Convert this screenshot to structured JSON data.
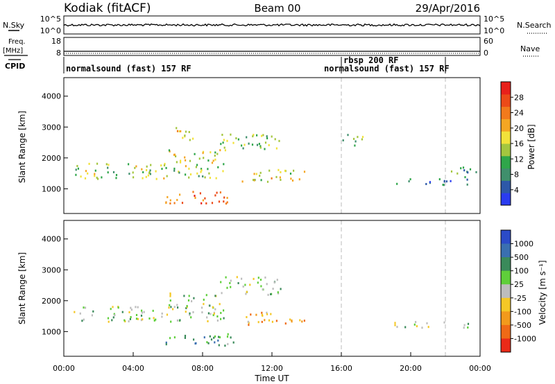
{
  "header": {
    "station": "Kodiak (fitACF)",
    "beam": "Beam 00",
    "date": "29/Apr/2016"
  },
  "noise_panel": {
    "left_label": "N.Sky",
    "right_label": "N.Search",
    "left_ticks": [
      "10^5",
      "10^0"
    ],
    "right_ticks": [
      "10^5",
      "10^0"
    ]
  },
  "freq_panel": {
    "left_label_1": "Freq.",
    "left_label_2": "[MHz]",
    "right_label": "Nave",
    "left_ticks": [
      "18",
      "8"
    ],
    "right_ticks": [
      "60",
      "0"
    ]
  },
  "cpid_panel": {
    "label": "CPID",
    "segments": [
      {
        "text": "normalsound (fast) 157 RF",
        "start_hour": 0
      },
      {
        "text": "rbsp 200 RF",
        "start_hour": 16
      },
      {
        "text": "normalsound (fast) 157 RF",
        "start_hour": 16
      }
    ]
  },
  "colors": {
    "power": [
      "#2a3cf0",
      "#2d58a8",
      "#3f8f6c",
      "#2fa64a",
      "#a4c63f",
      "#f2e23a",
      "#f5a623",
      "#f27a1c",
      "#ec4a18",
      "#e8201a"
    ],
    "velocity": [
      "#2b4bc8",
      "#3a6fb0",
      "#3a8a5a",
      "#5fcf3a",
      "#bdbdbd",
      "#f5c826",
      "#f29a1c",
      "#ef6a16",
      "#ea2a18"
    ]
  },
  "chart_data": [
    {
      "type": "heatmap",
      "quantity": "power",
      "ylabel": "Slant Range [km]",
      "xlim_hours": [
        0,
        24
      ],
      "ylim_km": [
        200,
        4600
      ],
      "yticks": [
        "1000",
        "2000",
        "3000",
        "4000"
      ],
      "colorbar_label": "Power [dB]",
      "colorbar_ticks": [
        "4",
        "8",
        "12",
        "16",
        "20",
        "24",
        "28"
      ],
      "vertical_markers_hours": [
        16,
        22
      ],
      "regions": [
        {
          "t0": 0.5,
          "t1": 9.5,
          "r0": 1350,
          "r1": 1850,
          "level": 0.45
        },
        {
          "t0": 6.0,
          "t1": 9.0,
          "r0": 1800,
          "r1": 2300,
          "level": 0.5
        },
        {
          "t0": 9.0,
          "t1": 12.5,
          "r0": 2200,
          "r1": 2800,
          "level": 0.4
        },
        {
          "t0": 6.3,
          "t1": 7.6,
          "r0": 2600,
          "r1": 3100,
          "level": 0.55
        },
        {
          "t0": 5.8,
          "t1": 9.8,
          "r0": 550,
          "r1": 950,
          "level": 0.8
        },
        {
          "t0": 10.2,
          "t1": 14.0,
          "r0": 1250,
          "r1": 1650,
          "level": 0.55
        },
        {
          "t0": 16.0,
          "t1": 17.2,
          "r0": 2400,
          "r1": 2800,
          "level": 0.35
        },
        {
          "t0": 19.0,
          "t1": 23.5,
          "r0": 1150,
          "r1": 1350,
          "level": 0.2
        },
        {
          "t0": 22.3,
          "t1": 24.0,
          "r0": 1400,
          "r1": 1750,
          "level": 0.3
        }
      ]
    },
    {
      "type": "heatmap",
      "quantity": "velocity",
      "ylabel": "Slant Range [km]",
      "xlabel": "Time UT",
      "xlim_hours": [
        0,
        24
      ],
      "ylim_km": [
        200,
        4600
      ],
      "xticks": [
        "00:00",
        "04:00",
        "08:00",
        "12:00",
        "16:00",
        "20:00",
        "00:00"
      ],
      "yticks": [
        "1000",
        "2000",
        "3000",
        "4000"
      ],
      "colorbar_label": "Velocity [m s⁻¹]",
      "colorbar_ticks": [
        "1000",
        "500",
        "100",
        "25",
        "-25",
        "-100",
        "-500",
        "-1000"
      ],
      "vertical_markers_hours": [
        16,
        22
      ],
      "regions": [
        {
          "t0": 0.5,
          "t1": 9.5,
          "r0": 1350,
          "r1": 1850,
          "level": 0.45
        },
        {
          "t0": 6.0,
          "t1": 9.0,
          "r0": 1800,
          "r1": 2300,
          "level": 0.45
        },
        {
          "t0": 9.0,
          "t1": 12.5,
          "r0": 2200,
          "r1": 2800,
          "level": 0.45
        },
        {
          "t0": 5.8,
          "t1": 9.8,
          "r0": 550,
          "r1": 950,
          "level": 0.3
        },
        {
          "t0": 10.2,
          "t1": 14.0,
          "r0": 1250,
          "r1": 1650,
          "level": 0.7
        },
        {
          "t0": 19.0,
          "t1": 23.5,
          "r0": 1150,
          "r1": 1350,
          "level": 0.45
        }
      ]
    }
  ]
}
